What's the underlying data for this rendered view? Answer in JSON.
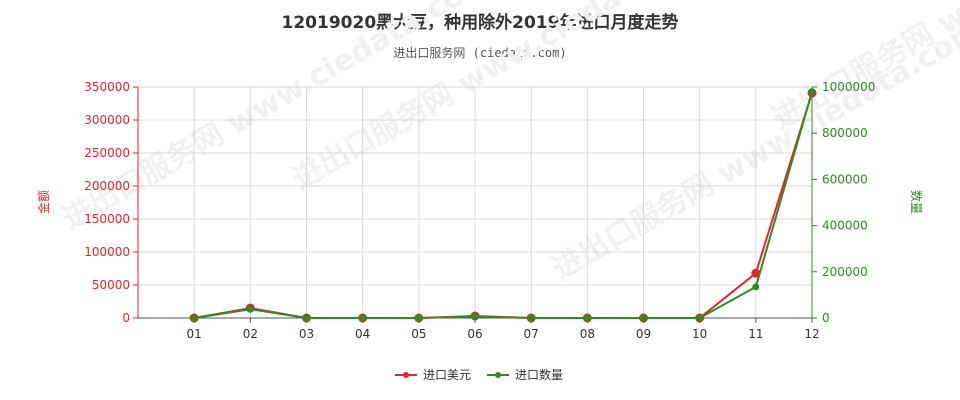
{
  "chart_data": {
    "type": "line",
    "title": "12019020黑大豆，种用除外2019年进口月度走势",
    "subtitle": "进出口服务网 (ciedata.com)",
    "categories": [
      "01",
      "02",
      "03",
      "04",
      "05",
      "06",
      "07",
      "08",
      "09",
      "10",
      "11",
      "12"
    ],
    "y_left": {
      "label": "金额",
      "ticks": [
        "0",
        "50000",
        "100000",
        "150000",
        "200000",
        "250000",
        "300000",
        "350000"
      ],
      "range": [
        0,
        350000
      ],
      "color": "#e8232a"
    },
    "y_right": {
      "label": "数量",
      "ticks": [
        "0",
        "200000",
        "400000",
        "600000",
        "800000",
        "1000000"
      ],
      "range": [
        0,
        1000000
      ],
      "color": "#2e8b22"
    },
    "series": [
      {
        "name": "进口美元",
        "axis": "left",
        "color": "#e8232a",
        "values": [
          0,
          15000,
          0,
          0,
          0,
          3000,
          0,
          0,
          0,
          0,
          68000,
          341000
        ]
      },
      {
        "name": "进口数量",
        "axis": "right",
        "color": "#2e8b22",
        "values": [
          0,
          38000,
          0,
          0,
          0,
          6000,
          0,
          0,
          0,
          0,
          135000,
          980000
        ]
      }
    ],
    "grid": true,
    "legend_position": "bottom-center",
    "watermark": "进出口服务网 www.ciedata.com"
  }
}
